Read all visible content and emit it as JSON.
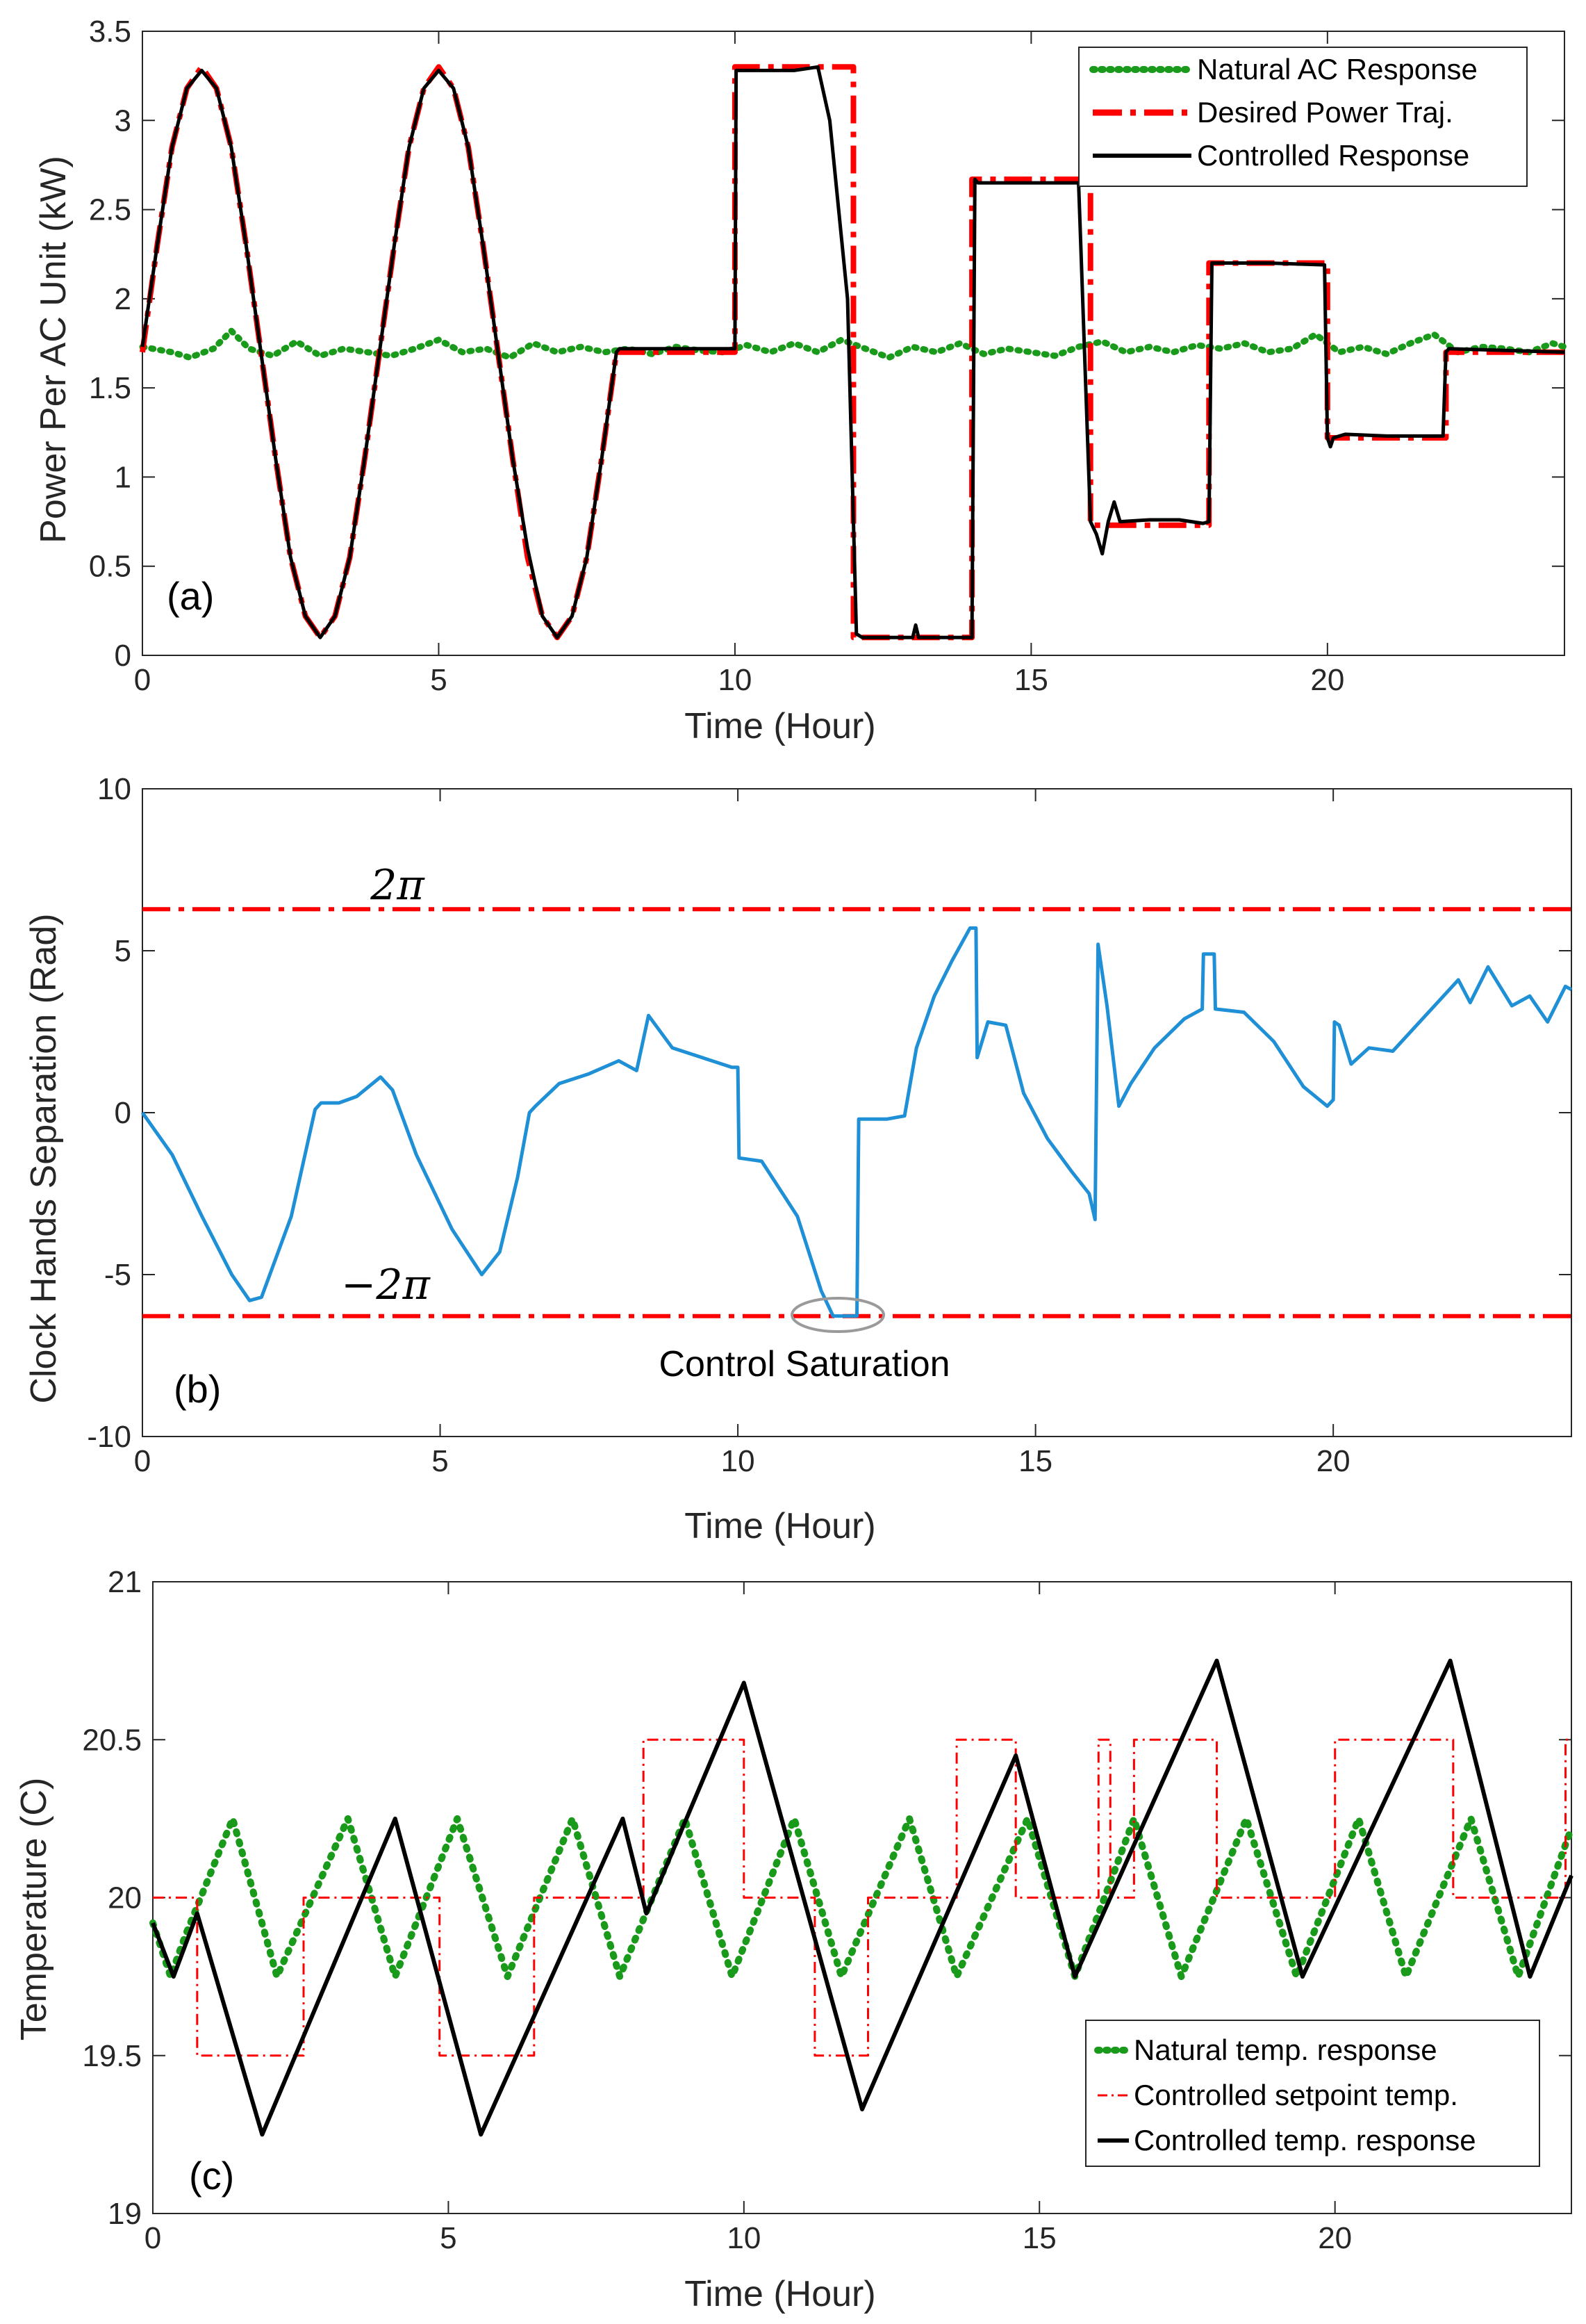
{
  "colors": {
    "green": "#1a9a1a",
    "red": "#ff0000",
    "black": "#000000",
    "blue": "#1f8fd6",
    "axis": "#262626",
    "ellipse": "#9a9a9a"
  },
  "chart_data": [
    {
      "type": "line",
      "panel_label": "(a)",
      "xlabel": "Time (Hour)",
      "ylabel": "Power Per AC Unit (kW)",
      "xlim": [
        0,
        24
      ],
      "ylim": [
        0,
        3.5
      ],
      "xticks": [
        0,
        5,
        10,
        15,
        20
      ],
      "xtick_labels": [
        "0",
        "5",
        "10",
        "15",
        "20"
      ],
      "yticks": [
        0,
        0.5,
        1,
        1.5,
        2,
        2.5,
        3,
        3.5
      ],
      "ytick_labels": [
        "0",
        "0.5",
        "1",
        "1.5",
        "2",
        "2.5",
        "3",
        "3.5"
      ],
      "legend_position": "top-right",
      "series": [
        {
          "name": "Natural AC Response",
          "style": "dotted",
          "color": "#1a9a1a",
          "x": [
            0,
            0.5,
            0.8,
            1.2,
            1.5,
            1.8,
            2.2,
            2.6,
            3.0,
            3.4,
            3.8,
            4.2,
            4.6,
            5.0,
            5.4,
            5.8,
            6.2,
            6.6,
            7.0,
            7.4,
            7.8,
            8.2,
            8.6,
            9.0,
            9.4,
            9.8,
            10.2,
            10.6,
            11.0,
            11.4,
            11.8,
            12.2,
            12.6,
            13.0,
            13.4,
            13.8,
            14.2,
            14.6,
            15.0,
            15.4,
            15.8,
            16.2,
            16.6,
            17.0,
            17.4,
            17.8,
            18.2,
            18.6,
            19.0,
            19.4,
            19.8,
            20.2,
            20.6,
            21.0,
            21.4,
            21.8,
            22.2,
            22.6,
            23.0,
            23.4,
            23.8,
            24.0
          ],
          "y": [
            1.73,
            1.7,
            1.67,
            1.72,
            1.82,
            1.72,
            1.68,
            1.76,
            1.68,
            1.72,
            1.7,
            1.68,
            1.72,
            1.77,
            1.7,
            1.72,
            1.67,
            1.75,
            1.7,
            1.73,
            1.7,
            1.72,
            1.69,
            1.73,
            1.71,
            1.7,
            1.74,
            1.7,
            1.75,
            1.7,
            1.77,
            1.72,
            1.67,
            1.73,
            1.7,
            1.75,
            1.69,
            1.72,
            1.7,
            1.68,
            1.73,
            1.76,
            1.7,
            1.73,
            1.7,
            1.74,
            1.72,
            1.75,
            1.7,
            1.72,
            1.8,
            1.7,
            1.73,
            1.69,
            1.75,
            1.8,
            1.7,
            1.73,
            1.72,
            1.7,
            1.75,
            1.73
          ]
        },
        {
          "name": "Desired Power Traj.",
          "style": "dashdot",
          "color": "#ff0000",
          "x": [
            0,
            0.25,
            0.5,
            0.75,
            1.0,
            1.25,
            1.5,
            1.75,
            2.0,
            2.25,
            2.5,
            2.75,
            3.0,
            3.25,
            3.5,
            3.75,
            4.0,
            4.25,
            4.5,
            4.75,
            5.0,
            5.25,
            5.5,
            5.75,
            6.0,
            6.25,
            6.5,
            6.75,
            7.0,
            7.25,
            7.5,
            7.75,
            8.0,
            8.0,
            10.0,
            10.0,
            12.0,
            12.0,
            14.0,
            14.0,
            16.0,
            16.0,
            18.0,
            18.0,
            20.0,
            20.0,
            22.0,
            22.0,
            24.0
          ],
          "y": [
            1.7,
            2.3,
            2.85,
            3.18,
            3.3,
            3.18,
            2.85,
            2.3,
            1.7,
            1.1,
            0.55,
            0.22,
            0.1,
            0.22,
            0.55,
            1.1,
            1.7,
            2.3,
            2.85,
            3.18,
            3.3,
            3.18,
            2.85,
            2.3,
            1.7,
            1.1,
            0.55,
            0.22,
            0.1,
            0.22,
            0.55,
            1.1,
            1.7,
            1.7,
            1.7,
            3.3,
            3.3,
            0.1,
            0.1,
            2.67,
            2.67,
            0.73,
            0.73,
            2.2,
            2.2,
            1.22,
            1.22,
            1.7,
            1.7
          ]
        },
        {
          "name": "Controlled Response",
          "style": "solid",
          "color": "#000000",
          "x": [
            0,
            0.25,
            0.5,
            0.75,
            1.0,
            1.25,
            1.5,
            1.75,
            2.0,
            2.25,
            2.5,
            2.75,
            3.0,
            3.25,
            3.5,
            3.75,
            4.0,
            4.25,
            4.5,
            4.75,
            5.0,
            5.25,
            5.5,
            5.75,
            6.0,
            6.25,
            6.5,
            6.75,
            7.0,
            7.25,
            7.5,
            7.75,
            8.0,
            8.05,
            10.0,
            10.02,
            11.0,
            11.4,
            11.6,
            11.9,
            12.05,
            12.15,
            13.0,
            13.05,
            13.1,
            14.0,
            14.05,
            14.1,
            15.0,
            15.8,
            16.0,
            16.1,
            16.2,
            16.3,
            16.4,
            16.5,
            17.0,
            17.5,
            17.9,
            18.0,
            18.05,
            19.0,
            19.95,
            20.0,
            20.05,
            20.1,
            20.3,
            21.0,
            21.95,
            22.0,
            22.05,
            24.0
          ],
          "y": [
            1.73,
            2.3,
            2.85,
            3.18,
            3.28,
            3.18,
            2.85,
            2.3,
            1.7,
            1.1,
            0.55,
            0.22,
            0.1,
            0.22,
            0.55,
            1.1,
            1.7,
            2.3,
            2.85,
            3.18,
            3.28,
            3.18,
            2.85,
            2.3,
            1.7,
            1.1,
            0.6,
            0.22,
            0.1,
            0.22,
            0.55,
            1.1,
            1.7,
            1.72,
            1.72,
            3.28,
            3.28,
            3.3,
            3.0,
            2.0,
            0.12,
            0.1,
            0.1,
            0.17,
            0.1,
            0.1,
            2.67,
            2.65,
            2.65,
            2.65,
            0.75,
            0.68,
            0.57,
            0.75,
            0.86,
            0.75,
            0.76,
            0.76,
            0.74,
            0.75,
            2.2,
            2.2,
            2.19,
            1.22,
            1.17,
            1.22,
            1.24,
            1.23,
            1.23,
            1.7,
            1.72,
            1.7
          ]
        }
      ]
    },
    {
      "type": "line",
      "panel_label": "(b)",
      "xlabel": "Time (Hour)",
      "ylabel": "Clock Hands Separation (Rad)",
      "xlim": [
        0,
        24
      ],
      "ylim": [
        -10,
        10
      ],
      "xticks": [
        0,
        5,
        10,
        15,
        20
      ],
      "xtick_labels": [
        "0",
        "5",
        "10",
        "15",
        "20"
      ],
      "yticks": [
        -10,
        -5,
        0,
        5,
        10
      ],
      "ytick_labels": [
        "-10",
        "-5",
        "0",
        "5",
        "10"
      ],
      "annotations": [
        {
          "text": "2π",
          "x": 4.3,
          "y": 6.8
        },
        {
          "text": "−2π",
          "x": 4.1,
          "y": -5.6
        },
        {
          "text": "Control Saturation",
          "x": 11.6,
          "y": -7.8
        }
      ],
      "series": [
        {
          "name": "",
          "role": "upper bound",
          "style": "dashdot",
          "color": "#ff0000",
          "x": [
            0,
            24
          ],
          "y": [
            6.2832,
            6.2832
          ]
        },
        {
          "name": "",
          "role": "lower bound",
          "style": "dashdot",
          "color": "#ff0000",
          "x": [
            0,
            24
          ],
          "y": [
            -6.2832,
            -6.2832
          ]
        },
        {
          "name": "",
          "style": "solid",
          "color": "#1f8fd6",
          "x": [
            0,
            0.5,
            1.0,
            1.5,
            1.8,
            2.0,
            2.5,
            2.9,
            3.0,
            3.3,
            3.6,
            4.0,
            4.2,
            4.6,
            5.2,
            5.7,
            6.0,
            6.3,
            6.5,
            6.6,
            7.0,
            7.5,
            8.0,
            8.3,
            8.5,
            8.9,
            9.4,
            9.9,
            10.0,
            10.02,
            10.4,
            11.0,
            11.4,
            11.6,
            11.8,
            12.0,
            12.03,
            12.5,
            12.8,
            13.0,
            13.3,
            13.6,
            13.9,
            14.0,
            14.02,
            14.2,
            14.5,
            14.8,
            15.2,
            15.6,
            15.9,
            16.0,
            16.05,
            16.2,
            16.4,
            16.6,
            17.0,
            17.5,
            17.8,
            17.82,
            18.0,
            18.02,
            18.5,
            19.0,
            19.5,
            19.9,
            20.0,
            20.02,
            20.1,
            20.3,
            20.6,
            21.0,
            21.5,
            22.0,
            22.1,
            22.3,
            22.6,
            23.0,
            23.3,
            23.6,
            23.9,
            24.0
          ],
          "y": [
            0,
            -1.3,
            -3.2,
            -5.0,
            -5.8,
            -5.7,
            -3.2,
            0.1,
            0.3,
            0.3,
            0.5,
            1.1,
            0.7,
            -1.3,
            -3.6,
            -5.0,
            -4.3,
            -2.0,
            0.0,
            0.2,
            0.9,
            1.2,
            1.6,
            1.3,
            3.0,
            2.0,
            1.7,
            1.4,
            1.4,
            -1.4,
            -1.5,
            -3.2,
            -5.5,
            -6.28,
            -6.28,
            -6.28,
            -0.2,
            -0.2,
            -0.1,
            2.0,
            3.6,
            4.7,
            5.7,
            5.7,
            1.7,
            2.8,
            2.7,
            0.6,
            -0.8,
            -1.8,
            -2.5,
            -3.3,
            5.2,
            3.3,
            0.2,
            0.9,
            2.0,
            2.9,
            3.2,
            4.9,
            4.9,
            3.2,
            3.1,
            2.2,
            0.8,
            0.2,
            0.4,
            2.8,
            2.7,
            1.5,
            2.0,
            1.9,
            2.9,
            3.9,
            4.1,
            3.4,
            4.5,
            3.3,
            3.6,
            2.8,
            3.9,
            3.8
          ]
        }
      ]
    },
    {
      "type": "line",
      "panel_label": "(c)",
      "xlabel": "Time (Hour)",
      "ylabel": "Temperature (C)",
      "xlim": [
        0,
        24
      ],
      "ylim": [
        19,
        21
      ],
      "xticks": [
        0,
        5,
        10,
        15,
        20
      ],
      "xtick_labels": [
        "0",
        "5",
        "10",
        "15",
        "20"
      ],
      "yticks": [
        19,
        19.5,
        20,
        20.5,
        21
      ],
      "ytick_labels": [
        "19",
        "19.5",
        "20",
        "20.5",
        "21"
      ],
      "legend_position": "bottom-right",
      "series": [
        {
          "name": "Natural temp. response",
          "style": "dotted",
          "color": "#1a9a1a",
          "x": [
            0,
            0.3,
            0.55,
            1.35,
            2.1,
            3.3,
            4.1,
            5.15,
            6.0,
            7.1,
            7.9,
            9.0,
            9.8,
            10.85,
            11.65,
            12.8,
            13.6,
            14.8,
            15.6,
            16.6,
            17.4,
            18.5,
            19.35,
            20.4,
            21.2,
            22.3,
            23.1,
            24.0
          ],
          "y": [
            19.92,
            19.75,
            19.88,
            20.25,
            19.75,
            20.25,
            19.75,
            20.25,
            19.75,
            20.25,
            19.75,
            20.25,
            19.75,
            20.25,
            19.75,
            20.25,
            19.75,
            20.25,
            19.75,
            20.25,
            19.75,
            20.25,
            19.75,
            20.25,
            19.75,
            20.25,
            19.75,
            20.22
          ]
        },
        {
          "name": "Controlled setpoint temp.",
          "style": "dashdot",
          "color": "#ff0000",
          "x": [
            0,
            0.75,
            0.75,
            2.55,
            2.55,
            4.85,
            4.85,
            6.45,
            6.45,
            8.3,
            8.3,
            10.0,
            10.0,
            11.2,
            11.2,
            12.1,
            12.1,
            13.6,
            13.6,
            14.6,
            14.6,
            16.0,
            16.0,
            16.2,
            16.2,
            16.6,
            16.6,
            18.0,
            18.0,
            20.0,
            20.0,
            22.0,
            22.0,
            23.9,
            23.9,
            24.0
          ],
          "y": [
            20,
            20,
            19.5,
            19.5,
            20,
            20,
            19.5,
            19.5,
            20,
            20,
            20.5,
            20.5,
            20,
            20,
            19.5,
            19.5,
            20,
            20,
            20.5,
            20.5,
            20,
            20,
            20.5,
            20.5,
            20,
            20,
            20.5,
            20.5,
            20,
            20,
            20.5,
            20.5,
            20,
            20,
            20.5,
            20.5
          ]
        },
        {
          "name": "Controlled temp. response",
          "style": "solid",
          "color": "#000000",
          "x": [
            0,
            0.35,
            0.75,
            1.85,
            4.1,
            5.55,
            7.95,
            8.35,
            10.0,
            12.0,
            14.6,
            15.6,
            18.0,
            19.45,
            21.95,
            23.3,
            24.0
          ],
          "y": [
            19.92,
            19.75,
            19.95,
            19.25,
            20.25,
            19.25,
            20.25,
            19.95,
            20.68,
            19.33,
            20.45,
            19.75,
            20.75,
            19.75,
            20.75,
            19.75,
            20.07
          ]
        }
      ]
    }
  ]
}
